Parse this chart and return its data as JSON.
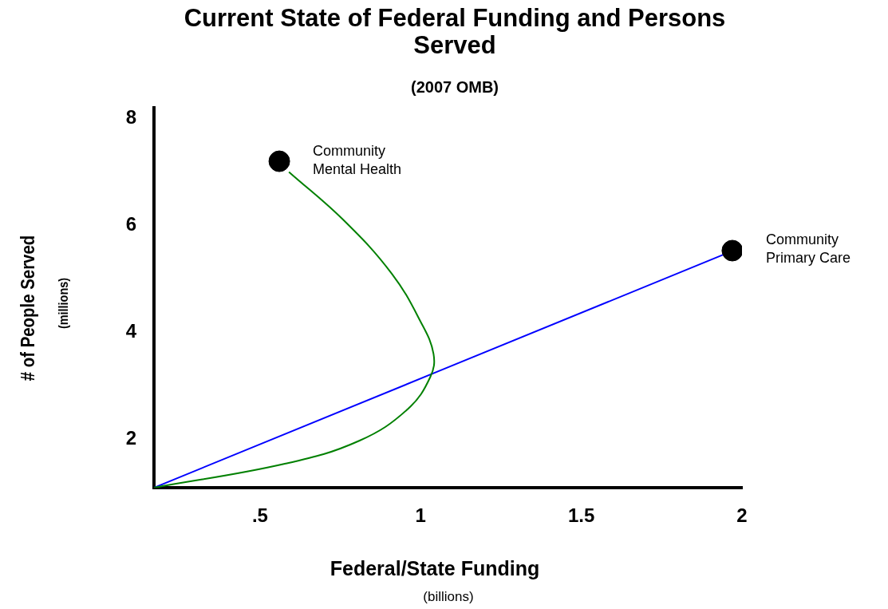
{
  "chart_data": {
    "type": "line",
    "title": "Current State of Federal Funding and Persons Served",
    "subtitle": "(2007 OMB)",
    "xlabel": "Federal/State Funding",
    "ylabel": "# of People Served",
    "annotations": [
      "(millions)",
      "(billions)",
      {
        "text": "Community Mental Health",
        "x": 0.56,
        "y": 7.2
      },
      {
        "text": "Community Primary Care",
        "x": 1.97,
        "y": 5.53
      }
    ],
    "series": [
      {
        "color": "#008000",
        "marker": "none",
        "x": [
          0.17,
          0.58,
          0.81,
          0.96,
          1.03,
          1.04,
          1.0,
          0.91,
          0.76,
          0.59
        ],
        "values": [
          1.1,
          1.55,
          1.98,
          2.57,
          3.17,
          3.6,
          4.2,
          5.1,
          6.1,
          7.0
        ]
      },
      {
        "color": "#0000ff",
        "marker": "none",
        "x": [
          0.17,
          1.94
        ],
        "values": [
          1.1,
          5.45
        ]
      },
      {
        "type": "scatter",
        "color": "#000000",
        "marker": "circle",
        "x": [
          0.56,
          1.97
        ],
        "values": [
          7.2,
          5.53
        ]
      }
    ],
    "xlim": [
      0.17,
      2
    ],
    "xticks": [
      {
        "value": 0.5,
        "label": ".5"
      },
      1,
      1.5,
      2
    ],
    "ylim": [
      1.1,
      8.2
    ],
    "yticks": [
      2,
      4,
      6,
      8
    ],
    "grid": false,
    "legend": false
  }
}
